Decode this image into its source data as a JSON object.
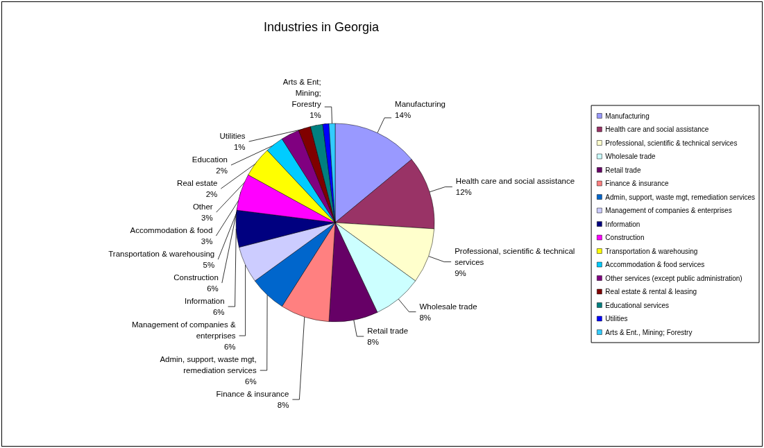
{
  "chart_data": {
    "type": "pie",
    "title": "Industries in Georgia",
    "categories": [
      "Manufacturing",
      "Health care and social assistance",
      "Professional, scientific & technical services",
      "Wholesale trade",
      "Retail trade",
      "Finance & insurance",
      "Admin, support, waste mgt, remediation services",
      "Management of companies & enterprises",
      "Information",
      "Construction",
      "Transportation & warehousing",
      "Accommodation & food services",
      "Other services (except public administration)",
      "Real estate & rental & leasing",
      "Educational services",
      "Utilities",
      "Arts & Ent., Mining; Forestry"
    ],
    "values": [
      14,
      12,
      9,
      8,
      8,
      8,
      6,
      6,
      6,
      6,
      5,
      3,
      3,
      2,
      2,
      1,
      1
    ],
    "colors": [
      "#9999ff",
      "#993366",
      "#ffffcc",
      "#ccffff",
      "#660066",
      "#ff8080",
      "#0066cc",
      "#ccccff",
      "#000080",
      "#ff00ff",
      "#ffff00",
      "#00ccff",
      "#800080",
      "#800000",
      "#008080",
      "#0000ff",
      "#33ccff"
    ],
    "value_labels": [
      "Manufacturing\n14%",
      "Health care and social assistance\n12%",
      "Professional, scientific & technical\nservices\n9%",
      "Wholesale trade\n8%",
      "Retail trade\n8%",
      "Finance & insurance\n8%",
      "Admin, support, waste mgt,\nremediation services\n6%",
      "Management of companies &\nenterprises\n6%",
      "Information\n6%",
      "Construction\n6%",
      "Transportation & warehousing\n5%",
      "Accommodation & food\n3%",
      "Other\n3%",
      "Real estate\n2%",
      "Education\n2%",
      "Utilities\n1%",
      "Arts & Ent;\nMining;\nForestry\n1%"
    ],
    "legend": "right"
  }
}
